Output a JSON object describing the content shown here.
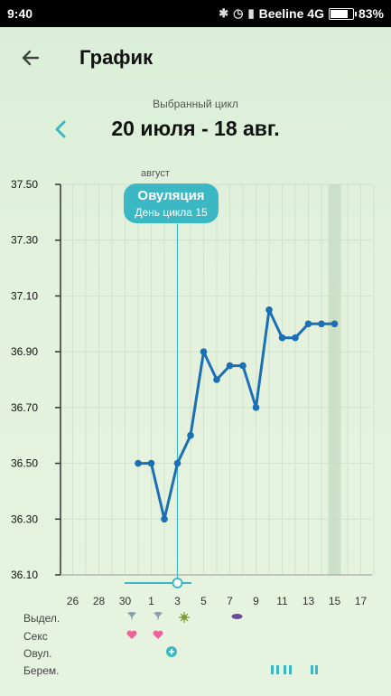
{
  "status_bar": {
    "time": "9:40",
    "carrier": "Beeline 4G",
    "battery": "83%"
  },
  "header": {
    "title": "График",
    "back_icon": "arrow-left-icon"
  },
  "cycle": {
    "caption": "Выбранный цикл",
    "range": "20 июля - 18 авг.",
    "prev_icon": "chevron-left-icon"
  },
  "ovulation": {
    "title": "Овуляция",
    "subtitle": "День цикла 15",
    "month": "август"
  },
  "rows": {
    "discharge": "Выдел.",
    "sex": "Секс",
    "ovulation": "Овул.",
    "pregnancy": "Берем."
  },
  "colors": {
    "accent": "#3cb8c4",
    "line": "#1a6fb5",
    "heart": "#f0609a",
    "grid": "#c9dcc9"
  },
  "chart_data": {
    "type": "line",
    "ylim": [
      36.1,
      37.5
    ],
    "y_ticks": [
      "37.50",
      "37.30",
      "37.10",
      "36.90",
      "36.70",
      "36.50",
      "36.30",
      "36.10"
    ],
    "x_ticks": [
      "26",
      "28",
      "30",
      "1",
      "3",
      "5",
      "7",
      "9",
      "11",
      "13",
      "15",
      "17"
    ],
    "series": [
      {
        "values": [
          {
            "day": "31",
            "temp": 36.5
          },
          {
            "day": "1",
            "temp": 36.5
          },
          {
            "day": "2",
            "temp": 36.3
          },
          {
            "day": "3",
            "temp": 36.5
          },
          {
            "day": "4",
            "temp": 36.6
          },
          {
            "day": "5",
            "temp": 36.9
          },
          {
            "day": "6",
            "temp": 36.8
          },
          {
            "day": "7",
            "temp": 36.85
          },
          {
            "day": "8",
            "temp": 36.85
          },
          {
            "day": "9",
            "temp": 36.7
          },
          {
            "day": "10",
            "temp": 37.05
          },
          {
            "day": "11",
            "temp": 36.95
          },
          {
            "day": "12",
            "temp": 36.95
          },
          {
            "day": "13",
            "temp": 37.0
          },
          {
            "day": "14",
            "temp": 37.0
          },
          {
            "day": "15",
            "temp": 37.0
          }
        ]
      }
    ],
    "ovulation_day": "3",
    "highlight_day": "15"
  }
}
